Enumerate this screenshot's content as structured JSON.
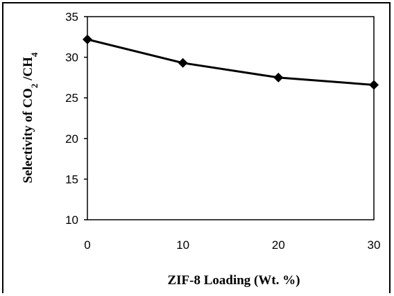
{
  "chart_data": {
    "type": "line",
    "x": [
      0,
      10,
      20,
      30
    ],
    "series": [
      {
        "values": [
          32.2,
          29.3,
          27.5,
          26.6
        ]
      }
    ],
    "xlabel": "ZIF-8 Loading (Wt. %)",
    "ylabel": {
      "main": "Selectivity of CO",
      "sub1": "2",
      "mid": " /CH",
      "sub2": "4"
    },
    "xlim": [
      0,
      30
    ],
    "ylim": [
      10,
      35
    ],
    "xticks": [
      "0",
      "10",
      "20",
      "30"
    ],
    "yticks": [
      "10",
      "15",
      "20",
      "25",
      "30",
      "35"
    ],
    "grid": false,
    "legend": "none",
    "line_color": "#000000",
    "marker": "diamond"
  }
}
